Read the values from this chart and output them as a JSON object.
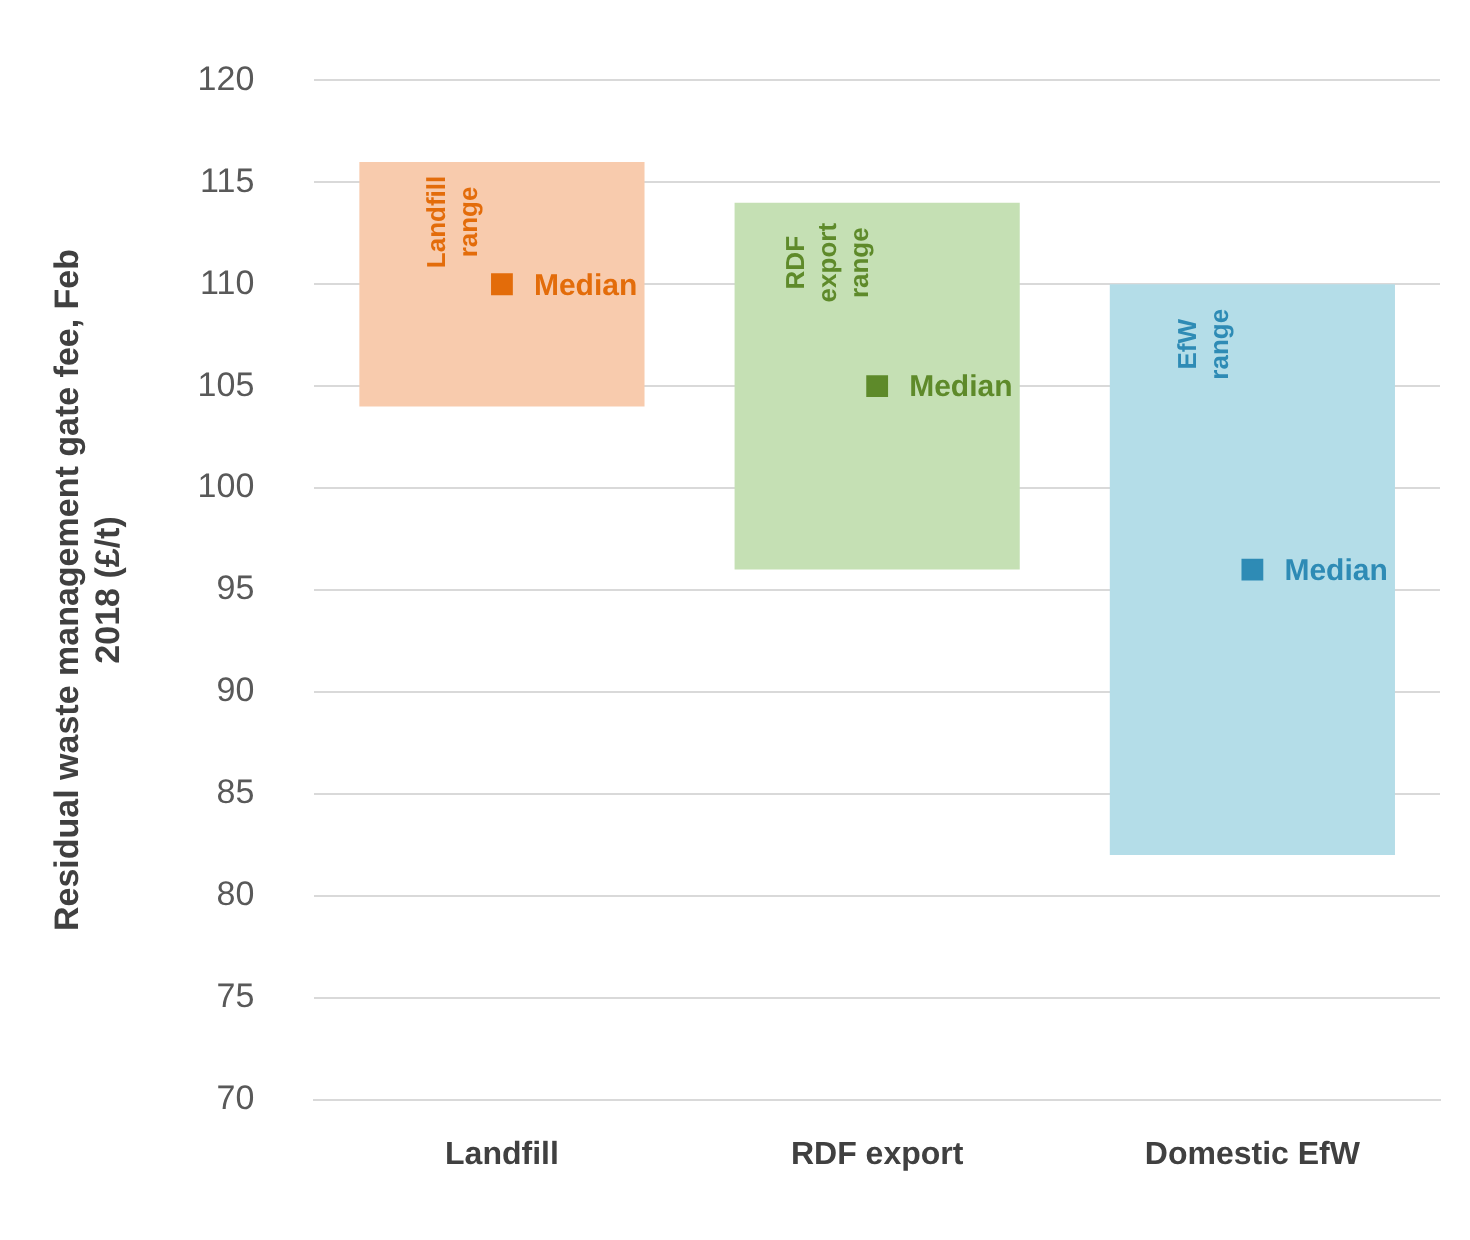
{
  "chart_data": {
    "type": "bar",
    "ylabel": "Residual waste management gate fee, Feb 2018 (£/t)",
    "categories": [
      "Landfill",
      "RDF export",
      "Domestic EfW"
    ],
    "series": [
      {
        "colors": [
          "#f8cbad",
          "#c5e0b4",
          "#b4dde8"
        ],
        "base": [
          104,
          96,
          82
        ],
        "values": [
          12,
          18,
          28
        ]
      },
      {
        "type": "scatter",
        "name": "Median",
        "colors": [
          "#e36c0a",
          "#5e8a2a",
          "#2e8bb5"
        ],
        "values": [
          110,
          105,
          96
        ]
      }
    ],
    "ylim": [
      70,
      120
    ],
    "yticks": [
      70,
      75,
      80,
      85,
      90,
      95,
      100,
      105,
      110,
      115,
      120
    ],
    "grid": "y",
    "legend": false,
    "annotations": [
      "Landfill range",
      "RDF export range",
      "EfW range"
    ]
  }
}
